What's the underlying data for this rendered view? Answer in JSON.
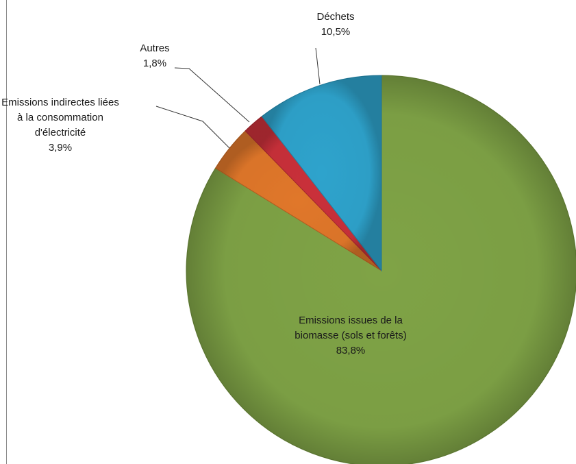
{
  "chart_data": {
    "type": "pie",
    "title": "",
    "start_angle_deg": 0,
    "direction": "clockwise",
    "slices": [
      {
        "label_lines": [
          "Emissions issues de la",
          "biomasse (sols et forêts)"
        ],
        "value_text": "83,8%",
        "value": 83.8,
        "color": "#7fa346",
        "label_placement": "inside"
      },
      {
        "label_lines": [
          "Emissions indirectes liées",
          "à la consommation",
          "d'électricité"
        ],
        "value_text": "3,9%",
        "value": 3.9,
        "color": "#e0772a",
        "label_placement": "outside-left"
      },
      {
        "label_lines": [
          "Autres"
        ],
        "value_text": "1,8%",
        "value": 1.8,
        "color": "#c9303a",
        "label_placement": "outside-left"
      },
      {
        "label_lines": [
          "Déchets"
        ],
        "value_text": "10,5%",
        "value": 10.5,
        "color": "#2ea3cc",
        "label_placement": "outside-top"
      }
    ]
  }
}
